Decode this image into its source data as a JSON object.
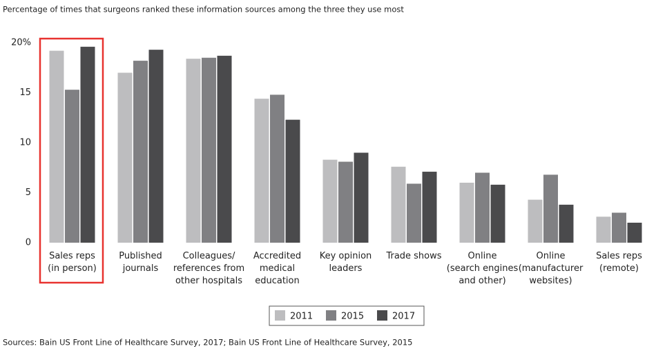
{
  "chart_data": {
    "type": "bar",
    "title": "Percentage of times that surgeons ranked these information sources among the three they use most",
    "categories": [
      [
        "Sales reps",
        "(in person)"
      ],
      [
        "Published",
        "journals"
      ],
      [
        "Colleagues/",
        "references from",
        "other hospitals"
      ],
      [
        "Accredited",
        "medical",
        "education"
      ],
      [
        "Key opinion",
        "leaders"
      ],
      [
        "Trade shows"
      ],
      [
        "Online",
        "(search engines",
        "and other)"
      ],
      [
        "Online",
        "(manufacturer",
        "websites)"
      ],
      [
        "Sales reps",
        "(remote)"
      ]
    ],
    "series": [
      {
        "name": "2011",
        "color": "#bdbdbf",
        "values": [
          19.2,
          17.0,
          18.4,
          14.4,
          8.3,
          7.6,
          6.0,
          4.3,
          2.6
        ]
      },
      {
        "name": "2015",
        "color": "#808083",
        "values": [
          15.3,
          18.2,
          18.5,
          14.8,
          8.1,
          5.9,
          7.0,
          6.8,
          3.0
        ]
      },
      {
        "name": "2017",
        "color": "#4a4a4c",
        "values": [
          19.6,
          19.3,
          18.7,
          12.3,
          9.0,
          7.1,
          5.8,
          3.8,
          2.0
        ]
      }
    ],
    "ylim": [
      0,
      20
    ],
    "yticks": [
      0,
      5,
      10,
      15,
      {
        "value": 20,
        "label": "20%"
      }
    ],
    "grid": false,
    "legend": "bottom",
    "source": "Sources: Bain US Front Line of Healthcare Survey, 2017; Bain US Front Line of Healthcare Survey, 2015"
  }
}
